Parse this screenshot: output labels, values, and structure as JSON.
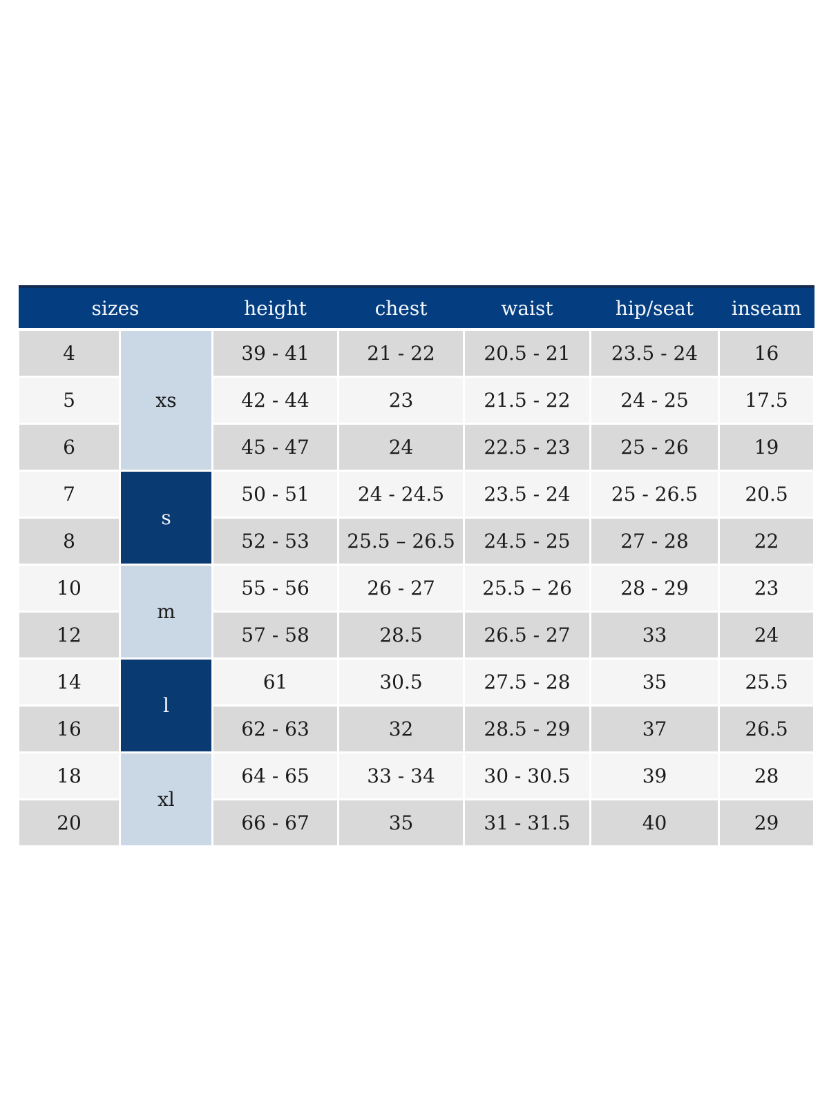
{
  "chart_data": {
    "type": "table",
    "columns": [
      "sizes",
      "height",
      "chest",
      "waist",
      "hip/seat",
      "inseam"
    ],
    "size_groups": [
      {
        "label": "xs",
        "span": 3,
        "shade": "light"
      },
      {
        "label": "s",
        "span": 2,
        "shade": "dark"
      },
      {
        "label": "m",
        "span": 2,
        "shade": "light"
      },
      {
        "label": "l",
        "span": 2,
        "shade": "dark"
      },
      {
        "label": "xl",
        "span": 2,
        "shade": "light"
      }
    ],
    "rows": [
      {
        "size": "4",
        "height": "39 - 41",
        "chest": "21 - 22",
        "waist": "20.5 - 21",
        "hip_seat": "23.5 - 24",
        "inseam": "16"
      },
      {
        "size": "5",
        "height": "42 - 44",
        "chest": "23",
        "waist": "21.5 - 22",
        "hip_seat": "24 - 25",
        "inseam": "17.5"
      },
      {
        "size": "6",
        "height": "45 - 47",
        "chest": "24",
        "waist": "22.5 - 23",
        "hip_seat": "25 - 26",
        "inseam": "19"
      },
      {
        "size": "7",
        "height": "50 - 51",
        "chest": "24 - 24.5",
        "waist": "23.5 - 24",
        "hip_seat": "25 - 26.5",
        "inseam": "20.5"
      },
      {
        "size": "8",
        "height": "52 - 53",
        "chest": "25.5 – 26.5",
        "waist": "24.5 - 25",
        "hip_seat": "27 - 28",
        "inseam": "22"
      },
      {
        "size": "10",
        "height": "55 - 56",
        "chest": "26 - 27",
        "waist": "25.5 – 26",
        "hip_seat": "28 - 29",
        "inseam": "23"
      },
      {
        "size": "12",
        "height": "57 - 58",
        "chest": "28.5",
        "waist": "26.5 - 27",
        "hip_seat": "33",
        "inseam": "24"
      },
      {
        "size": "14",
        "height": "61",
        "chest": "30.5",
        "waist": "27.5 - 28",
        "hip_seat": "35",
        "inseam": "25.5"
      },
      {
        "size": "16",
        "height": "62 - 63",
        "chest": "32",
        "waist": "28.5 - 29",
        "hip_seat": "37",
        "inseam": "26.5"
      },
      {
        "size": "18",
        "height": "64 - 65",
        "chest": "33 - 34",
        "waist": "30 - 30.5",
        "hip_seat": "39",
        "inseam": "28"
      },
      {
        "size": "20",
        "height": "66 - 67",
        "chest": "35",
        "waist": "31 - 31.5",
        "hip_seat": "40",
        "inseam": "29"
      }
    ]
  },
  "colors": {
    "header_background": "#053e80",
    "header_text": "#f4f7fb",
    "header_top_edge": "#122c54",
    "group_dark_background": "#0a3a72",
    "group_light_background": "#cad7e5",
    "row_gray": "#d9d9d9",
    "row_light": "#f5f5f5",
    "grid_gap": "#ffffff",
    "cell_text": "#1b1b1b"
  }
}
